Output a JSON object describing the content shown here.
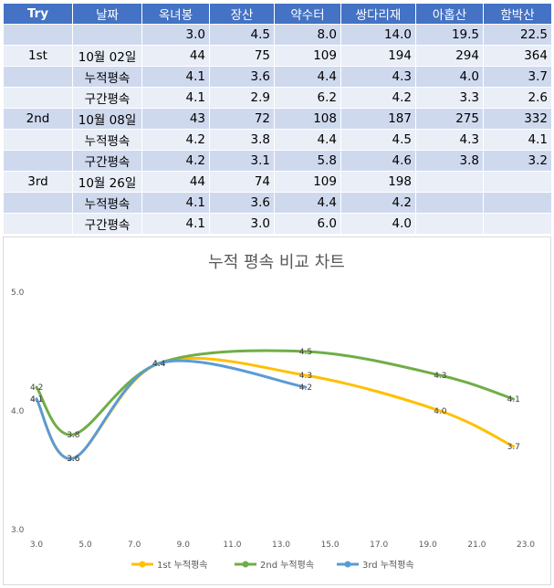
{
  "table": {
    "headers": [
      "Try",
      "날짜",
      "옥녀봉",
      "장산",
      "약수터",
      "쌍다리재",
      "아홉산",
      "함박산"
    ],
    "rows": [
      [
        "",
        "",
        "3.0",
        "4.5",
        "8.0",
        "14.0",
        "19.5",
        "22.5"
      ],
      [
        "1st",
        "10월 02일",
        "44",
        "75",
        "109",
        "194",
        "294",
        "364"
      ],
      [
        "",
        "누적평속",
        "4.1",
        "3.6",
        "4.4",
        "4.3",
        "4.0",
        "3.7"
      ],
      [
        "",
        "구간평속",
        "4.1",
        "2.9",
        "6.2",
        "4.2",
        "3.3",
        "2.6"
      ],
      [
        "2nd",
        "10월 08일",
        "43",
        "72",
        "108",
        "187",
        "275",
        "332"
      ],
      [
        "",
        "누적평속",
        "4.2",
        "3.8",
        "4.4",
        "4.5",
        "4.3",
        "4.1"
      ],
      [
        "",
        "구간평속",
        "4.2",
        "3.1",
        "5.8",
        "4.6",
        "3.8",
        "3.2"
      ],
      [
        "3rd",
        "10월 26일",
        "44",
        "74",
        "109",
        "198",
        "",
        ""
      ],
      [
        "",
        "누적평속",
        "4.1",
        "3.6",
        "4.4",
        "4.2",
        "",
        ""
      ],
      [
        "",
        "구간평속",
        "4.1",
        "3.0",
        "6.0",
        "4.0",
        "",
        ""
      ]
    ]
  },
  "chart_data": {
    "type": "line",
    "title": "누적 평속 비교 차트",
    "xlim": [
      3.0,
      23.0
    ],
    "ylim": [
      3.0,
      5.0
    ],
    "x_ticks": [
      "3.0",
      "5.0",
      "7.0",
      "9.0",
      "11.0",
      "13.0",
      "15.0",
      "17.0",
      "19.0",
      "21.0",
      "23.0"
    ],
    "y_ticks": [
      "3.0",
      "4.0",
      "5.0"
    ],
    "smooth": true,
    "legend_position": "bottom",
    "series": [
      {
        "name": "1st 누적평속",
        "color": "#ffc000",
        "x": [
          3.0,
          4.5,
          8.0,
          14.0,
          19.5,
          22.5
        ],
        "y": [
          4.1,
          3.6,
          4.4,
          4.3,
          4.0,
          3.7
        ],
        "labels": [
          "4.1",
          "3.6",
          "4.4",
          "4.3",
          "4.0",
          "3.7"
        ]
      },
      {
        "name": "2nd 누적평속",
        "color": "#70ad47",
        "x": [
          3.0,
          4.5,
          8.0,
          14.0,
          19.5,
          22.5
        ],
        "y": [
          4.2,
          3.8,
          4.4,
          4.5,
          4.3,
          4.1
        ],
        "labels": [
          "4.2",
          "3.8",
          "4.4",
          "4.5",
          "4.3",
          "4.1"
        ]
      },
      {
        "name": "3rd 누적평속",
        "color": "#5b9bd5",
        "x": [
          3.0,
          4.5,
          8.0,
          14.0
        ],
        "y": [
          4.1,
          3.6,
          4.4,
          4.2
        ],
        "labels": [
          "4.1",
          "3.6",
          "4.4",
          "4.2"
        ]
      }
    ]
  }
}
